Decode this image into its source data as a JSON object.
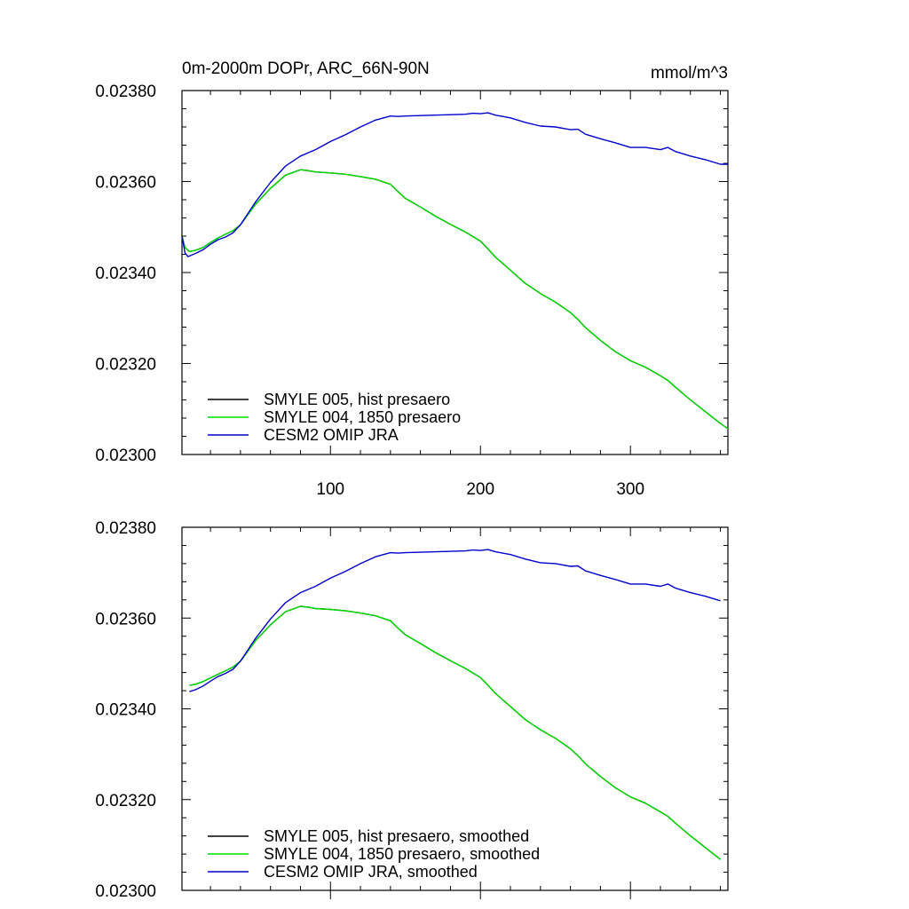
{
  "figure": {
    "title_left": "0m-2000m DOPr, ARC_66N-90N",
    "title_right": "mmol/m^3"
  },
  "chart_data": [
    {
      "type": "line",
      "xlim": [
        1,
        365
      ],
      "ylim": [
        0.023,
        0.0238
      ],
      "x_ticks": [
        100,
        200,
        300
      ],
      "x_tick_labels": [
        "100",
        "200",
        "300"
      ],
      "y_ticks": [
        0.023,
        0.0232,
        0.0234,
        0.0236,
        0.0238
      ],
      "y_tick_labels": [
        "0.02300",
        "0.02320",
        "0.02340",
        "0.02360",
        "0.02380"
      ],
      "grid": false,
      "legend_position": "bottom-left",
      "series": [
        {
          "name": "SMYLE 005, hist presaero",
          "color": "#000000",
          "x": [
            1,
            3,
            6,
            10,
            15,
            20,
            25,
            30,
            35,
            40,
            50,
            60,
            70,
            80,
            85,
            90,
            100,
            110,
            120,
            130,
            140,
            145,
            150,
            160,
            170,
            180,
            190,
            200,
            205,
            210,
            220,
            230,
            240,
            250,
            260,
            265,
            270,
            280,
            290,
            300,
            310,
            320,
            325,
            330,
            340,
            350,
            360,
            365
          ],
          "values": [
            0.02348,
            0.023455,
            0.023446,
            0.023449,
            0.023455,
            0.023466,
            0.023476,
            0.023484,
            0.023492,
            0.023505,
            0.02355,
            0.023585,
            0.023614,
            0.023626,
            0.023624,
            0.023621,
            0.023619,
            0.023616,
            0.023611,
            0.023605,
            0.023594,
            0.023578,
            0.023563,
            0.023544,
            0.023524,
            0.023506,
            0.023489,
            0.023469,
            0.023452,
            0.023434,
            0.023405,
            0.023376,
            0.023354,
            0.023335,
            0.023312,
            0.023297,
            0.023279,
            0.023251,
            0.023226,
            0.023206,
            0.023192,
            0.023173,
            0.023163,
            0.023148,
            0.02312,
            0.023094,
            0.023068,
            0.023057
          ]
        },
        {
          "name": "SMYLE 004, 1850 presaero",
          "color": "#00dd00",
          "x": [
            1,
            3,
            6,
            10,
            15,
            20,
            25,
            30,
            35,
            40,
            50,
            60,
            70,
            80,
            85,
            90,
            100,
            110,
            120,
            130,
            140,
            145,
            150,
            160,
            170,
            180,
            190,
            200,
            205,
            210,
            220,
            230,
            240,
            250,
            260,
            265,
            270,
            280,
            290,
            300,
            310,
            320,
            325,
            330,
            340,
            350,
            360,
            365
          ],
          "values": [
            0.02348,
            0.023455,
            0.023446,
            0.023449,
            0.023455,
            0.023466,
            0.023476,
            0.023484,
            0.023492,
            0.023505,
            0.02355,
            0.023585,
            0.023614,
            0.023626,
            0.023624,
            0.023621,
            0.023619,
            0.023616,
            0.023611,
            0.023605,
            0.023594,
            0.023578,
            0.023563,
            0.023544,
            0.023524,
            0.023506,
            0.023489,
            0.023469,
            0.023452,
            0.023434,
            0.023405,
            0.023376,
            0.023354,
            0.023335,
            0.023312,
            0.023297,
            0.023279,
            0.023251,
            0.023226,
            0.023206,
            0.023192,
            0.023173,
            0.023163,
            0.023148,
            0.02312,
            0.023094,
            0.023068,
            0.023057
          ]
        },
        {
          "name": "CESM2 OMIP JRA",
          "color": "#0000cc",
          "x": [
            1,
            3,
            5,
            10,
            15,
            20,
            25,
            30,
            35,
            40,
            50,
            60,
            70,
            80,
            90,
            100,
            110,
            120,
            130,
            140,
            145,
            150,
            160,
            170,
            180,
            190,
            195,
            200,
            205,
            210,
            220,
            230,
            240,
            250,
            260,
            265,
            270,
            280,
            290,
            300,
            310,
            320,
            325,
            330,
            340,
            350,
            360,
            365
          ],
          "values": [
            0.02348,
            0.023443,
            0.023435,
            0.023442,
            0.02345,
            0.023462,
            0.023472,
            0.023478,
            0.023487,
            0.023505,
            0.023555,
            0.023598,
            0.023634,
            0.023656,
            0.02367,
            0.023688,
            0.023703,
            0.02372,
            0.023735,
            0.023744,
            0.023743,
            0.023744,
            0.023745,
            0.023746,
            0.023747,
            0.023748,
            0.02375,
            0.023749,
            0.023751,
            0.023746,
            0.02374,
            0.02373,
            0.023722,
            0.02372,
            0.023714,
            0.023715,
            0.023704,
            0.023694,
            0.023685,
            0.023675,
            0.023675,
            0.02367,
            0.023675,
            0.023666,
            0.023656,
            0.023648,
            0.023638,
            0.023638
          ]
        }
      ]
    },
    {
      "type": "line",
      "xlim": [
        1,
        365
      ],
      "ylim": [
        0.023,
        0.0238
      ],
      "x_ticks": [
        100,
        200,
        300
      ],
      "y_ticks": [
        0.023,
        0.0232,
        0.0234,
        0.0236,
        0.0238
      ],
      "y_tick_labels": [
        "0.02300",
        "0.02320",
        "0.02340",
        "0.02360",
        "0.02380"
      ],
      "grid": false,
      "legend_position": "bottom-left",
      "series": [
        {
          "name": "SMYLE 005, hist presaero, smoothed",
          "color": "#000000",
          "x": [
            6,
            10,
            15,
            20,
            25,
            30,
            35,
            40,
            50,
            60,
            70,
            80,
            85,
            90,
            100,
            110,
            120,
            130,
            140,
            145,
            150,
            160,
            170,
            180,
            190,
            200,
            205,
            210,
            220,
            230,
            240,
            250,
            260,
            265,
            270,
            280,
            290,
            300,
            310,
            320,
            325,
            330,
            340,
            350,
            360
          ],
          "values": [
            0.023452,
            0.023454,
            0.02346,
            0.023468,
            0.023476,
            0.023484,
            0.023492,
            0.023505,
            0.02355,
            0.023585,
            0.023614,
            0.023626,
            0.023624,
            0.023621,
            0.023619,
            0.023616,
            0.023611,
            0.023605,
            0.023594,
            0.023578,
            0.023563,
            0.023544,
            0.023524,
            0.023506,
            0.023489,
            0.023469,
            0.023452,
            0.023434,
            0.023405,
            0.023376,
            0.023354,
            0.023335,
            0.023312,
            0.023297,
            0.023279,
            0.023251,
            0.023226,
            0.023206,
            0.023192,
            0.023173,
            0.023163,
            0.023148,
            0.02312,
            0.023094,
            0.023068
          ]
        },
        {
          "name": "SMYLE 004, 1850 presaero, smoothed",
          "color": "#00dd00",
          "x": [
            6,
            10,
            15,
            20,
            25,
            30,
            35,
            40,
            50,
            60,
            70,
            80,
            85,
            90,
            100,
            110,
            120,
            130,
            140,
            145,
            150,
            160,
            170,
            180,
            190,
            200,
            205,
            210,
            220,
            230,
            240,
            250,
            260,
            265,
            270,
            280,
            290,
            300,
            310,
            320,
            325,
            330,
            340,
            350,
            360
          ],
          "values": [
            0.023452,
            0.023454,
            0.02346,
            0.023468,
            0.023476,
            0.023484,
            0.023492,
            0.023505,
            0.02355,
            0.023585,
            0.023614,
            0.023626,
            0.023624,
            0.023621,
            0.023619,
            0.023616,
            0.023611,
            0.023605,
            0.023594,
            0.023578,
            0.023563,
            0.023544,
            0.023524,
            0.023506,
            0.023489,
            0.023469,
            0.023452,
            0.023434,
            0.023405,
            0.023376,
            0.023354,
            0.023335,
            0.023312,
            0.023297,
            0.023279,
            0.023251,
            0.023226,
            0.023206,
            0.023192,
            0.023173,
            0.023163,
            0.023148,
            0.02312,
            0.023094,
            0.023068
          ]
        },
        {
          "name": "CESM2 OMIP JRA, smoothed",
          "color": "#0000cc",
          "x": [
            6,
            10,
            15,
            20,
            25,
            30,
            35,
            40,
            50,
            60,
            70,
            80,
            90,
            100,
            110,
            120,
            130,
            140,
            145,
            150,
            160,
            170,
            180,
            190,
            195,
            200,
            205,
            210,
            220,
            230,
            240,
            250,
            260,
            265,
            270,
            280,
            290,
            300,
            310,
            320,
            325,
            330,
            340,
            350,
            360
          ],
          "values": [
            0.023438,
            0.023442,
            0.02345,
            0.023461,
            0.023471,
            0.023478,
            0.023487,
            0.023505,
            0.023555,
            0.023598,
            0.023634,
            0.023656,
            0.02367,
            0.023688,
            0.023703,
            0.02372,
            0.023735,
            0.023744,
            0.023743,
            0.023744,
            0.023745,
            0.023746,
            0.023747,
            0.023748,
            0.02375,
            0.023749,
            0.023751,
            0.023746,
            0.02374,
            0.02373,
            0.023722,
            0.02372,
            0.023714,
            0.023715,
            0.023704,
            0.023694,
            0.023685,
            0.023675,
            0.023675,
            0.02367,
            0.023675,
            0.023666,
            0.023656,
            0.023648,
            0.023638
          ]
        }
      ]
    }
  ]
}
